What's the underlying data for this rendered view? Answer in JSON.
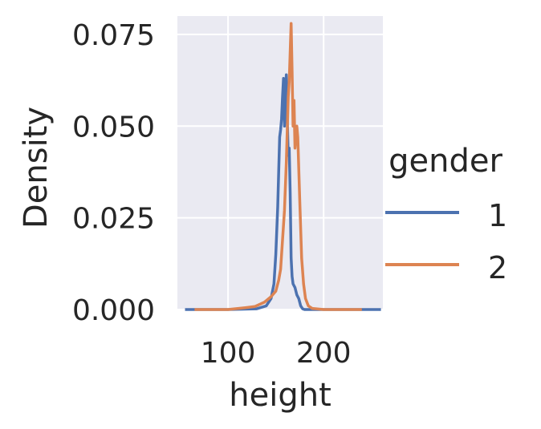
{
  "chart_data": {
    "type": "line",
    "title": "",
    "xlabel": "height",
    "ylabel": "Density",
    "xlim": [
      47,
      262
    ],
    "ylim": [
      0,
      0.08
    ],
    "grid": true,
    "background": "#eaeaf2",
    "x_ticks": [
      100,
      200
    ],
    "x_tick_labels": [
      "100",
      "200"
    ],
    "y_ticks": [
      0,
      0.025,
      0.05,
      0.075
    ],
    "y_tick_labels": [
      "0.000",
      "0.025",
      "0.050",
      "0.075"
    ],
    "legend": {
      "title": "gender",
      "placement": "right",
      "entries": [
        "1",
        "2"
      ]
    },
    "series": [
      {
        "name": "1",
        "color": "#4c72b0",
        "points": [
          [
            55,
            0
          ],
          [
            100,
            0
          ],
          [
            130,
            0.0002
          ],
          [
            140,
            0.001
          ],
          [
            145,
            0.003
          ],
          [
            148,
            0.007
          ],
          [
            150,
            0.015
          ],
          [
            152,
            0.028
          ],
          [
            154,
            0.047
          ],
          [
            155,
            0.049
          ],
          [
            156,
            0.052
          ],
          [
            157,
            0.058
          ],
          [
            158,
            0.063
          ],
          [
            159,
            0.05
          ],
          [
            160,
            0.057
          ],
          [
            161,
            0.064
          ],
          [
            162,
            0.052
          ],
          [
            163,
            0.042
          ],
          [
            164,
            0.044
          ],
          [
            165,
            0.032
          ],
          [
            166,
            0.014
          ],
          [
            167,
            0.009
          ],
          [
            168,
            0.007
          ],
          [
            170,
            0.006
          ],
          [
            172,
            0.004
          ],
          [
            174,
            0.003
          ],
          [
            176,
            0.001
          ],
          [
            178,
            0.0002
          ],
          [
            180,
            0
          ],
          [
            215,
            0
          ],
          [
            260,
            0
          ]
        ]
      },
      {
        "name": "2",
        "color": "#dd8452",
        "points": [
          [
            65,
            0
          ],
          [
            100,
            0
          ],
          [
            118,
            0.0005
          ],
          [
            128,
            0.0008
          ],
          [
            138,
            0.002
          ],
          [
            145,
            0.0035
          ],
          [
            150,
            0.005
          ],
          [
            153,
            0.008
          ],
          [
            155,
            0.011
          ],
          [
            157,
            0.019
          ],
          [
            159,
            0.027
          ],
          [
            161,
            0.04
          ],
          [
            163,
            0.058
          ],
          [
            164,
            0.062
          ],
          [
            165,
            0.07
          ],
          [
            166,
            0.078
          ],
          [
            167,
            0.065
          ],
          [
            168,
            0.05
          ],
          [
            169,
            0.057
          ],
          [
            170,
            0.044
          ],
          [
            171,
            0.047
          ],
          [
            172,
            0.05
          ],
          [
            173,
            0.047
          ],
          [
            175,
            0.03
          ],
          [
            177,
            0.014
          ],
          [
            179,
            0.007
          ],
          [
            181,
            0.003
          ],
          [
            184,
            0.001
          ],
          [
            188,
            0.0003
          ],
          [
            200,
            0
          ],
          [
            240,
            0
          ]
        ]
      }
    ]
  }
}
